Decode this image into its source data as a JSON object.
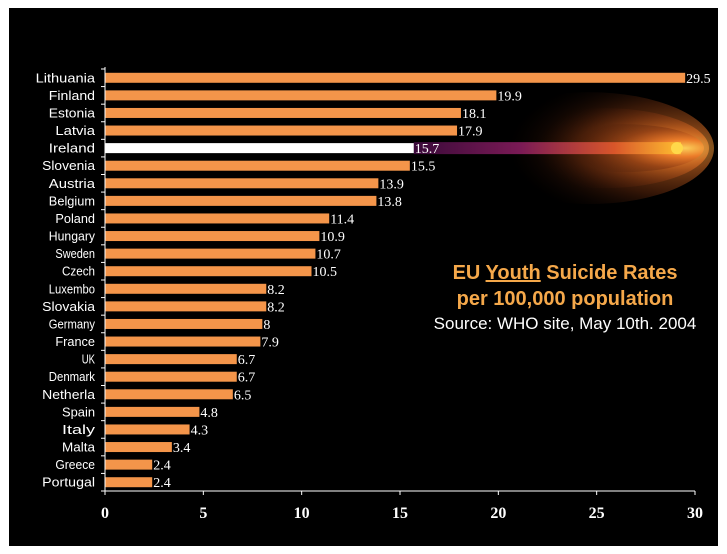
{
  "chart_data": {
    "type": "bar",
    "orientation": "horizontal",
    "categories": [
      "Lithuania",
      "Finland",
      "Estonia",
      "Latvia",
      "Ireland",
      "Slovenia",
      "Austria",
      "Belgium",
      "Poland",
      "Hungary",
      "Sweden",
      "Czech",
      "Luxembo",
      "Slovakia",
      "Germany",
      "France",
      "UK",
      "Denmark",
      "Netherla",
      "Spain",
      "Italy",
      "Malta",
      "Greece",
      "Portugal"
    ],
    "values": [
      29.5,
      19.9,
      18.1,
      17.9,
      15.7,
      15.5,
      13.9,
      13.8,
      11.4,
      10.9,
      10.7,
      10.5,
      8.2,
      8.2,
      8,
      7.9,
      6.7,
      6.7,
      6.5,
      4.8,
      4.3,
      3.4,
      2.4,
      2.4
    ],
    "value_labels": [
      "29.5",
      "19.9",
      "18.1",
      "17.9",
      "15.7",
      "15.5",
      "13.9",
      "13.8",
      "11.4",
      "10.9",
      "10.7",
      "10.5",
      "8.2",
      "8.2",
      "8",
      "7.9",
      "6.7",
      "6.7",
      "6.5",
      "4.8",
      "4.3",
      "3.4",
      "2.4",
      "2.4"
    ],
    "highlight": "Ireland",
    "xlim": [
      0,
      30
    ],
    "x_ticks": [
      "0",
      "5",
      "10",
      "15",
      "20",
      "25",
      "30"
    ],
    "grid": false,
    "title": "",
    "xlabel": "",
    "ylabel": ""
  },
  "caption": {
    "line1_pre": "EU ",
    "line1_underlined": "Youth",
    "line1_post": " Suicide Rates",
    "line2": "per 100,000 population",
    "source": "Source: WHO site, May 10th. 2004"
  },
  "colors": {
    "background": "#000000",
    "bar": "#f4954a",
    "highlight_bar": "#ffffff",
    "text": "#ffffff",
    "caption_accent": "#f5a84a"
  }
}
